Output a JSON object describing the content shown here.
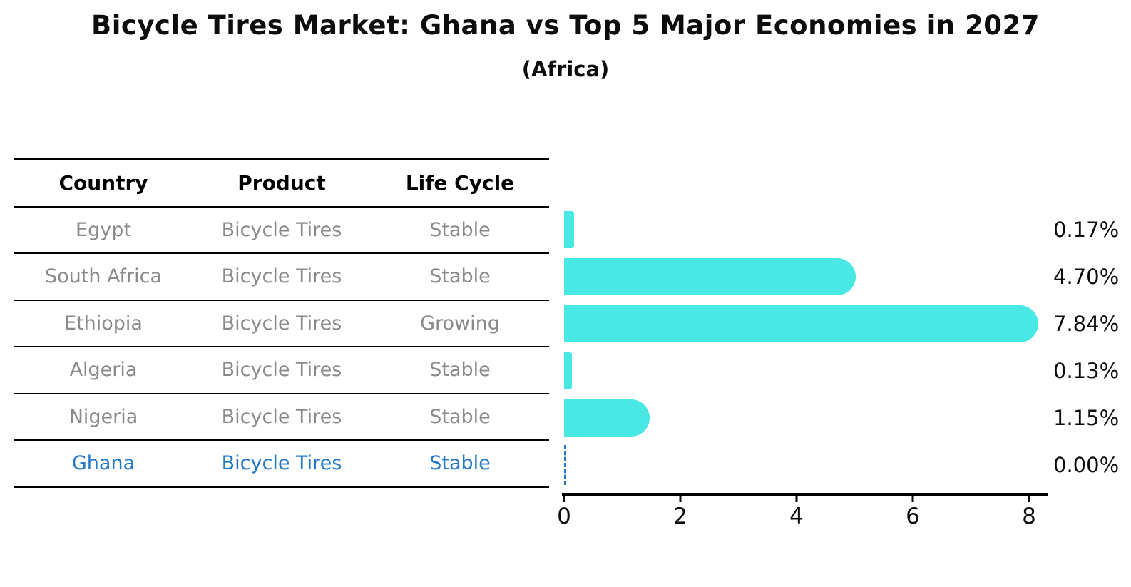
{
  "header": {
    "title": "Bicycle Tires Market: Ghana vs Top 5 Major Economies in 2027",
    "subtitle": "(Africa)"
  },
  "table": {
    "columns": [
      "Country",
      "Product",
      "Life Cycle"
    ],
    "rows": [
      {
        "country": "Egypt",
        "product": "Bicycle Tires",
        "life_cycle": "Stable"
      },
      {
        "country": "South Africa",
        "product": "Bicycle Tires",
        "life_cycle": "Stable"
      },
      {
        "country": "Ethiopia",
        "product": "Bicycle Tires",
        "life_cycle": "Growing"
      },
      {
        "country": "Algeria",
        "product": "Bicycle Tires",
        "life_cycle": "Stable"
      },
      {
        "country": "Nigeria",
        "product": "Bicycle Tires",
        "life_cycle": "Stable"
      },
      {
        "country": "Ghana",
        "product": "Bicycle Tires",
        "life_cycle": "Stable"
      }
    ],
    "highlight_row": "Ghana"
  },
  "chart_data": {
    "type": "bar",
    "orientation": "horizontal",
    "title": "Bicycle Tires Market: Ghana vs Top 5 Major Economies in 2027",
    "subtitle": "(Africa)",
    "categories": [
      "Egypt",
      "South Africa",
      "Ethiopia",
      "Algeria",
      "Nigeria",
      "Ghana"
    ],
    "values": [
      0.17,
      4.7,
      7.84,
      0.13,
      1.15,
      0.0
    ],
    "value_labels": [
      "0.17%",
      "4.70%",
      "7.84%",
      "0.13%",
      "1.15%",
      "0.00%"
    ],
    "xticks": [
      "0",
      "2",
      "4",
      "6",
      "8"
    ],
    "xtick_values": [
      0,
      2,
      4,
      6,
      8
    ],
    "xlim": [
      0,
      8.3
    ],
    "grid": false,
    "legend": "none",
    "bar_color": "#4ae8e4",
    "highlight_color": "#2478c8",
    "zero_marker_style": "dashed-line"
  }
}
